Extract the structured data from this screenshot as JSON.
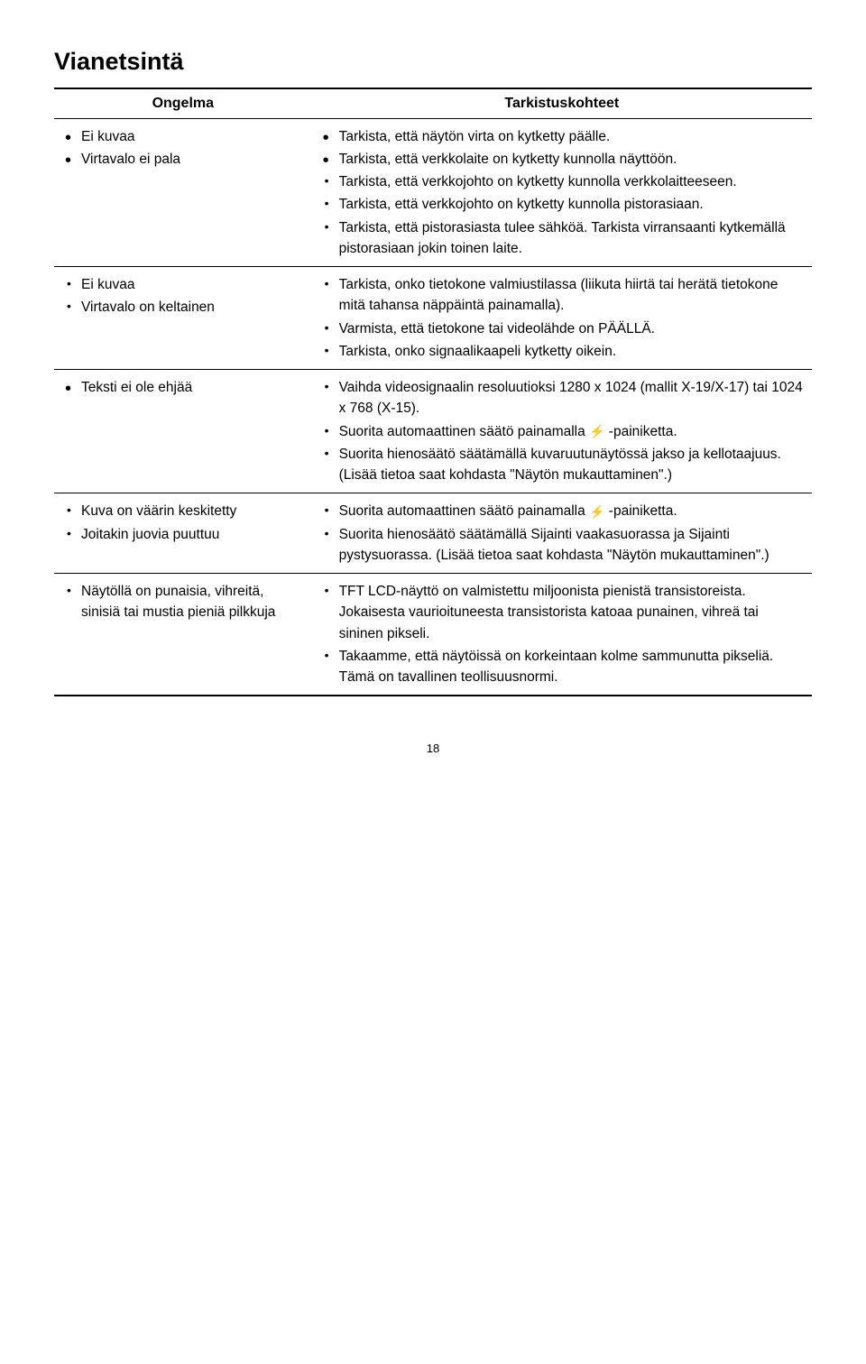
{
  "title": "Vianetsintä",
  "headers": {
    "problem": "Ongelma",
    "check": "Tarkistuskohteet"
  },
  "rows": [
    {
      "problems": [
        "Ei kuvaa",
        "Virtavalo ei pala"
      ],
      "checks": [
        "Tarkista, että näytön virta on kytketty päälle.",
        "Tarkista, että verkkolaite on kytketty kunnolla näyttöön.",
        "Tarkista, että verkkojohto on kytketty kunnolla verkkolaitteeseen.",
        "Tarkista, että verkkojohto on kytketty kunnolla pistorasiaan.",
        "Tarkista, että pistorasiasta tulee sähköä. Tarkista virransaanti kytkemällä pistorasiaan jokin toinen laite."
      ],
      "problem_big": true,
      "check_big_first": 2
    },
    {
      "problems": [
        "Ei kuvaa",
        "Virtavalo on keltainen"
      ],
      "checks": [
        "Tarkista, onko tietokone valmiustilassa (liikuta hiirtä tai herätä tietokone mitä tahansa näppäintä painamalla).",
        "Varmista, että tietokone tai videolähde on PÄÄLLÄ.",
        "Tarkista, onko signaalikaapeli kytketty oikein."
      ]
    },
    {
      "problems": [
        "Teksti ei ole ehjää"
      ],
      "checks_special": [
        "Vaihda videosignaalin resoluutioksi 1280 x 1024 (mallit X-19/X-17) tai 1024 x 768 (X-15).",
        {
          "text_pre": "Suorita automaattinen säätö painamalla ",
          "icon": "⚡",
          "text_post": " -painiketta."
        },
        "Suorita hienosäätö säätämällä kuvaruutunäytössä jakso ja kellotaajuus. (Lisää tietoa saat kohdasta \"Näytön mukauttaminen\".)"
      ],
      "problem_big": true
    },
    {
      "problems": [
        "Kuva on väärin keskitetty",
        "Joitakin juovia puuttuu"
      ],
      "checks_special": [
        {
          "text_pre": "Suorita automaattinen säätö painamalla ",
          "icon": "⚡",
          "text_post": " -painiketta."
        },
        "Suorita hienosäätö säätämällä Sijainti vaakasuorassa ja Sijainti pystysuorassa. (Lisää tietoa saat kohdasta \"Näytön mukauttaminen\".)"
      ]
    },
    {
      "problems": [
        "Näytöllä on punaisia, vihreitä, sinisiä tai mustia pieniä pilkkuja"
      ],
      "checks": [
        "TFT LCD-näyttö on valmistettu miljoonista pienistä transistoreista. Jokaisesta vaurioituneesta transistorista katoaa punainen, vihreä tai sininen pikseli.",
        "Takaamme, että näytöissä on korkeintaan kolme sammunutta pikseliä. Tämä on tavallinen teollisuusnormi."
      ]
    }
  ],
  "page_number": "18"
}
